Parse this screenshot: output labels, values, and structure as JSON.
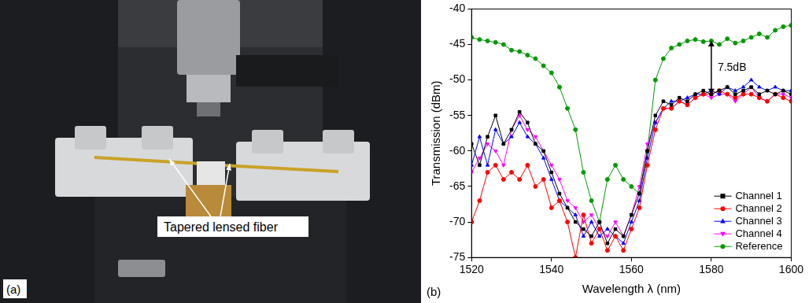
{
  "panel_a": {
    "label": "(a)",
    "annotation": "Tapered lensed fiber"
  },
  "panel_b_label": "(b)",
  "chart_data": {
    "type": "line",
    "x_label": "Wavelength λ (nm)",
    "y_label": "Transmission (dBm)",
    "x": [
      1520,
      1522,
      1524,
      1526,
      1528,
      1530,
      1532,
      1534,
      1536,
      1538,
      1540,
      1542,
      1544,
      1546,
      1548,
      1550,
      1552,
      1554,
      1556,
      1558,
      1560,
      1562,
      1564,
      1566,
      1568,
      1570,
      1572,
      1574,
      1576,
      1578,
      1580,
      1582,
      1584,
      1586,
      1588,
      1590,
      1592,
      1594,
      1596,
      1598,
      1600
    ],
    "xlim": [
      1520,
      1600
    ],
    "xticks": [
      1520,
      1540,
      1560,
      1580,
      1600
    ],
    "ylim": [
      -75,
      -40
    ],
    "yticks": [
      -75,
      -70,
      -65,
      -60,
      -55,
      -50,
      -45,
      -40
    ],
    "grid": false,
    "legend": "lower right",
    "annotations": [
      {
        "text": "7.5dB",
        "x": 1580,
        "y_from": -52,
        "y_to": -44.5
      }
    ],
    "series": [
      {
        "name": "Channel 1",
        "color": "#000000",
        "marker": "square",
        "values": [
          -59,
          -62,
          -58,
          -55,
          -59,
          -57,
          -54.5,
          -56,
          -59,
          -60,
          -63,
          -66,
          -68,
          -70,
          -71,
          -72,
          -70,
          -73,
          -71,
          -72,
          -69,
          -66,
          -60,
          -55,
          -53,
          -53.5,
          -52.5,
          -53,
          -52,
          -51.5,
          -52,
          -51.5,
          -51,
          -52,
          -51.5,
          -51,
          -52,
          -51.5,
          -52,
          -51.5,
          -52
        ]
      },
      {
        "name": "Channel 2",
        "color": "#ff0000",
        "marker": "circle",
        "values": [
          -70,
          -67,
          -63,
          -62,
          -64,
          -63,
          -64,
          -62,
          -65,
          -64,
          -68,
          -67,
          -70,
          -75,
          -69,
          -73,
          -71,
          -74,
          -72,
          -74,
          -71,
          -68,
          -62,
          -57,
          -54,
          -54,
          -53,
          -53.5,
          -52.5,
          -52,
          -52,
          -51.5,
          -52,
          -52.5,
          -52,
          -52,
          -52.5,
          -53,
          -52,
          -52.5,
          -53
        ]
      },
      {
        "name": "Channel 3",
        "color": "#0000ff",
        "marker": "triangle",
        "values": [
          -62,
          -58,
          -62,
          -57,
          -59,
          -58,
          -56,
          -58,
          -59,
          -61,
          -64,
          -67,
          -68,
          -69,
          -72,
          -70,
          -72,
          -71,
          -72,
          -73,
          -70,
          -67,
          -61,
          -56,
          -54,
          -53,
          -53,
          -52.5,
          -52,
          -52,
          -51.5,
          -52,
          -51,
          -51.5,
          -51,
          -50,
          -51,
          -51.5,
          -51,
          -51.5,
          -51.5
        ]
      },
      {
        "name": "Channel 4",
        "color": "#ff00ff",
        "marker": "triangle_down",
        "values": [
          -63,
          -61,
          -59,
          -60,
          -62,
          -57,
          -55,
          -57,
          -58,
          -60,
          -62,
          -64,
          -67,
          -68,
          -70,
          -69,
          -71,
          -72,
          -70,
          -72,
          -69,
          -65,
          -59,
          -56,
          -54,
          -54,
          -53,
          -53.5,
          -52.5,
          -52,
          -52.5,
          -52,
          -52,
          -53,
          -52,
          -51,
          -52.5,
          -53,
          -52,
          -52,
          -52.5
        ]
      },
      {
        "name": "Reference",
        "color": "#009900",
        "marker": "circle",
        "values": [
          -44,
          -44.3,
          -44.5,
          -44.7,
          -45,
          -45.8,
          -46,
          -46.5,
          -47,
          -48,
          -49,
          -51,
          -54,
          -57,
          -63,
          -67,
          -70,
          -64,
          -62,
          -64,
          -65,
          -66,
          -60,
          -50,
          -47,
          -45.5,
          -45,
          -44.5,
          -44.3,
          -44.6,
          -44.5,
          -45,
          -44.2,
          -44.8,
          -44.5,
          -44,
          -43.5,
          -44,
          -43,
          -42.5,
          -42.3
        ]
      }
    ]
  }
}
